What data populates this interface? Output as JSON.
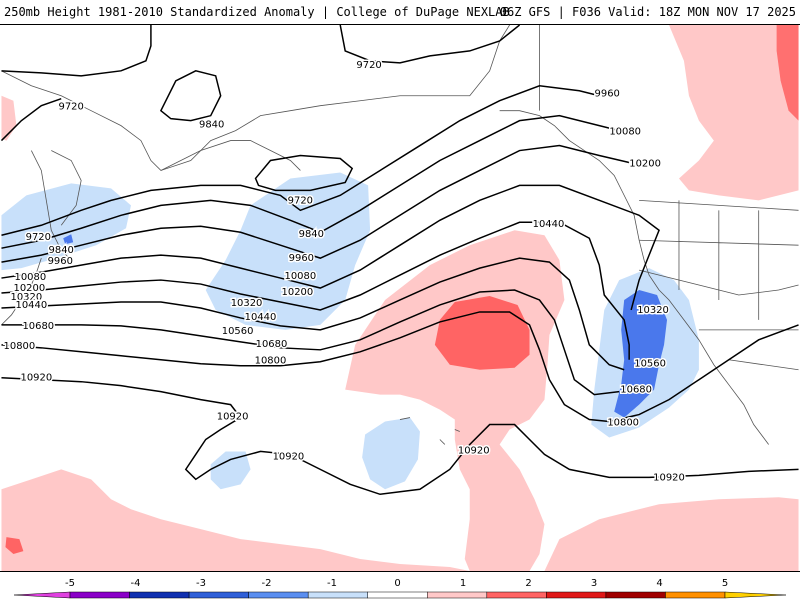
{
  "header": {
    "title": "250mb Height 1981-2010 Standardized Anomaly | College of DuPage NEXLAB",
    "run_info": "06Z GFS | F036 Valid: 18Z MON NOV 17 2025"
  },
  "map": {
    "region": "North Pacific",
    "field": "250mb geopotential height (m) with standardized anomaly shading",
    "contour_labels": [
      "9720",
      "9720",
      "9720",
      "9720",
      "9840",
      "9840",
      "9840",
      "9960",
      "9960",
      "9960",
      "10080",
      "10080",
      "10080",
      "10200",
      "10200",
      "10200",
      "10320",
      "10320",
      "10320",
      "10440",
      "10440",
      "10440",
      "10560",
      "10560",
      "10680",
      "10680",
      "10680",
      "10800",
      "10800",
      "10800",
      "10920",
      "10920",
      "10920",
      "10920",
      "10920"
    ]
  },
  "colorbar": {
    "ticks": [
      "-5",
      "-4",
      "-3",
      "-2",
      "-1",
      "0",
      "1",
      "2",
      "3",
      "4",
      "5"
    ],
    "colors": [
      "#e040e0",
      "#8a00c8",
      "#1030b0",
      "#2f5fd8",
      "#5a8ef0",
      "#c8e0fa",
      "#ffffff",
      "#ffc8c8",
      "#ff6464",
      "#e01818",
      "#a00000",
      "#ff9000",
      "#ffd000"
    ]
  }
}
